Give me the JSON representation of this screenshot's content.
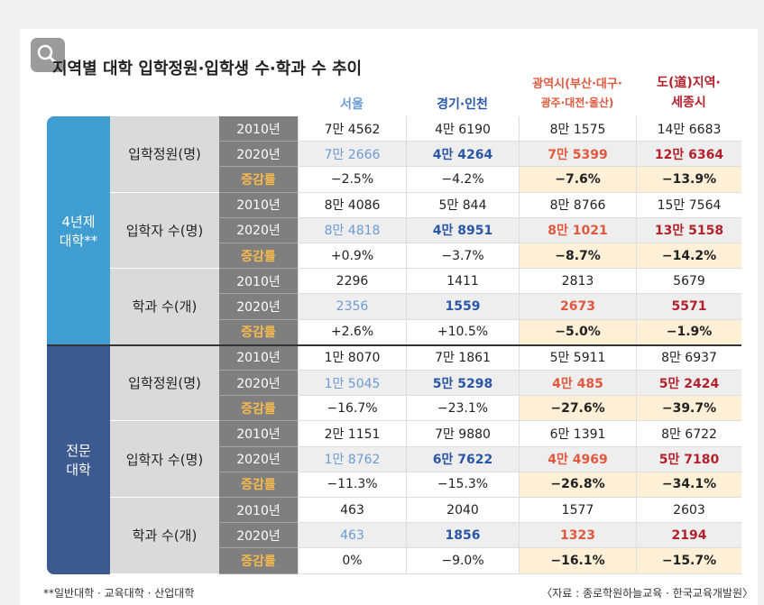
{
  "title": "지역별 대학 입학정원·입학생 수·학과 수 추이",
  "columns": [
    {
      "lines": [
        "서울"
      ]
    },
    {
      "lines": [
        "경기·인천"
      ]
    },
    {
      "lines": [
        "광역시(부산·대구·",
        "광주·대전·울산)"
      ]
    },
    {
      "lines": [
        "도(道)지역·",
        "세종시"
      ]
    }
  ],
  "groups": [
    {
      "label_lines": [
        "4년제",
        "대학**"
      ],
      "sections": [
        {
          "label": "입학정원(명)",
          "rows": [
            {
              "label": "2010년",
              "cells": [
                "7만 4562",
                "4만 6190",
                "8만 1575",
                "14만 6683"
              ]
            },
            {
              "label": "2020년",
              "cells": [
                "7만 2666",
                "4만 4264",
                "7만 5399",
                "12만 6364"
              ]
            },
            {
              "label": "증감률",
              "cells": [
                "−2.5%",
                "−4.2%",
                "−7.6%",
                "−13.9%"
              ]
            }
          ]
        },
        {
          "label": "입학자 수(명)",
          "rows": [
            {
              "label": "2010년",
              "cells": [
                "8만 4086",
                "5만 844",
                "8만 8766",
                "15만 7564"
              ]
            },
            {
              "label": "2020년",
              "cells": [
                "8만 4818",
                "4만 8951",
                "8만 1021",
                "13만 5158"
              ]
            },
            {
              "label": "증감률",
              "cells": [
                "+0.9%",
                "−3.7%",
                "−8.7%",
                "−14.2%"
              ]
            }
          ]
        },
        {
          "label": "학과 수(개)",
          "rows": [
            {
              "label": "2010년",
              "cells": [
                "2296",
                "1411",
                "2813",
                "5679"
              ]
            },
            {
              "label": "2020년",
              "cells": [
                "2356",
                "1559",
                "2673",
                "5571"
              ]
            },
            {
              "label": "증감률",
              "cells": [
                "+2.6%",
                "+10.5%",
                "−5.0%",
                "−1.9%"
              ]
            }
          ]
        }
      ]
    },
    {
      "label_lines": [
        "전문",
        "대학"
      ],
      "sections": [
        {
          "label": "입학정원(명)",
          "rows": [
            {
              "label": "2010년",
              "cells": [
                "1만 8070",
                "7만 1861",
                "5만 5911",
                "8만 6937"
              ]
            },
            {
              "label": "2020년",
              "cells": [
                "1만 5045",
                "5만 5298",
                "4만 485",
                "5만 2424"
              ]
            },
            {
              "label": "증감률",
              "cells": [
                "−16.7%",
                "−23.1%",
                "−27.6%",
                "−39.7%"
              ]
            }
          ]
        },
        {
          "label": "입학자 수(명)",
          "rows": [
            {
              "label": "2010년",
              "cells": [
                "2만 1151",
                "7만 9880",
                "6만 1391",
                "8만 6722"
              ]
            },
            {
              "label": "2020년",
              "cells": [
                "1만 8762",
                "6만 7622",
                "4만 4969",
                "5만 7180"
              ]
            },
            {
              "label": "증감률",
              "cells": [
                "−11.3%",
                "−15.3%",
                "−26.8%",
                "−34.1%"
              ]
            }
          ]
        },
        {
          "label": "학과 수(개)",
          "rows": [
            {
              "label": "2010년",
              "cells": [
                "463",
                "2040",
                "1577",
                "2603"
              ]
            },
            {
              "label": "2020년",
              "cells": [
                "463",
                "1856",
                "1323",
                "2194"
              ]
            },
            {
              "label": "증감률",
              "cells": [
                "0%",
                "−9.0%",
                "−16.1%",
                "−15.7%"
              ]
            }
          ]
        }
      ]
    }
  ],
  "footnote": "**일반대학 · 교육대학 · 산업대학",
  "source": "〈자료 : 종로학원하늘교육 · 한국교육개발원〉"
}
